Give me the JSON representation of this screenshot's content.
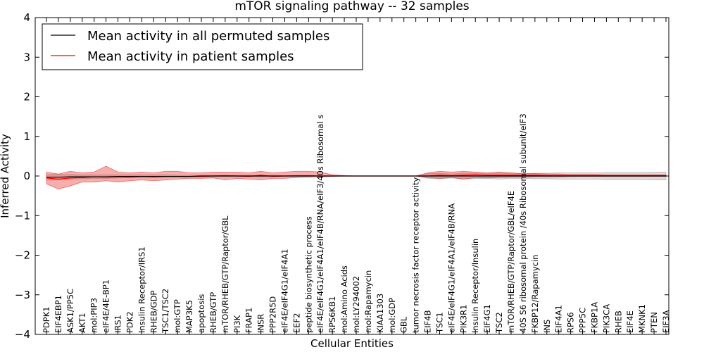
{
  "chart_data": {
    "type": "line",
    "title": "mTOR signaling pathway -- 32 samples",
    "xlabel": "Cellular Entities",
    "ylabel": "Inferred Activity",
    "ylim": [
      -4,
      4
    ],
    "yticks": [
      4,
      3,
      2,
      1,
      0,
      -1,
      -2,
      -3,
      -4
    ],
    "ytick_labels": [
      "4",
      "3",
      "2",
      "1",
      "0",
      "−1",
      "−2",
      "−3",
      "−4"
    ],
    "grid": false,
    "legend_position": "top-left",
    "categories": [
      "PDPK1",
      "EIF4EBP1",
      "ASK1/PP5C",
      "AKT1",
      "mol:PIP3",
      "eIF4E/4E-BP1",
      "IRS1",
      "PDK2",
      "Insulin Receptor/IRS1",
      "RHEB/GDP",
      "TSC1/TSC2",
      "mol:GTP",
      "MAP3K5",
      "apoptosis",
      "RHEB/GTP",
      "mTOR/RHEB/GTP/Raptor/GBL",
      "PI3K",
      "FRAP1",
      "INSR",
      "PPP2R5D",
      "eIF4E/eIF4G1/eIF4A1",
      "EEF2",
      "peptide biosynthetic process",
      "eIF4E/eIF4G1/eIF4A1/eIF4B/RNA/eIF3/40s Ribosomal s",
      "RPS6KB1",
      "mol:Amino Acids",
      "mol:LY294002",
      "mol:Rapamycin",
      "KIAA1303",
      "mol:GDP",
      "GBL",
      "tumor necrosis factor receptor activity",
      "EIF4B",
      "TSC1",
      "eIF4E/eIF4G1/eIF4A1/eIF4B/RNA",
      "PIK3R1",
      "Insulin Receptor/Insulin",
      "EIF4G1",
      "TSC2",
      "mTOR/RHEB/GTP/Raptor/GBL/eIF4E",
      "40S S6 ribosomal protein /40s Ribosomal subunit/eIF3",
      "FKBP12/Rapamycin",
      "INS",
      "EIF4A1",
      "RPS6",
      "PPP5C",
      "FKBP1A",
      "PIK3CA",
      "RHEB",
      "EIF4E",
      "MKNK1",
      "PTEN",
      "EIF3A"
    ],
    "series": [
      {
        "name": "Mean activity in all permuted samples",
        "color": "#000000",
        "values": [
          -0.03,
          -0.03,
          -0.02,
          -0.02,
          -0.02,
          -0.02,
          -0.01,
          -0.01,
          -0.01,
          -0.01,
          -0.01,
          -0.01,
          -0.01,
          0.0,
          0.0,
          0.0,
          0.0,
          0.0,
          0.0,
          0.0,
          0.0,
          0.0,
          0.0,
          0.0,
          0.0,
          0.0,
          0.0,
          0.0,
          0.0,
          0.0,
          0.0,
          0.0,
          0.0,
          0.0,
          0.0,
          0.0,
          0.0,
          0.0,
          0.0,
          0.0,
          0.0,
          0.0,
          0.0,
          0.0,
          0.0,
          0.0,
          0.0,
          0.0,
          0.0,
          0.0,
          0.0,
          0.0,
          0.0
        ],
        "band_low": [
          -0.1,
          -0.1,
          -0.08,
          -0.07,
          -0.06,
          -0.06,
          -0.05,
          -0.04,
          -0.04,
          -0.04,
          -0.03,
          -0.03,
          -0.03,
          -0.03,
          -0.02,
          -0.02,
          -0.02,
          -0.02,
          -0.02,
          -0.02,
          -0.01,
          -0.01,
          -0.01,
          0.0,
          0.0,
          0.0,
          0.0,
          0.0,
          0.0,
          0.0,
          0.0,
          0.0,
          -0.06,
          -0.07,
          -0.05,
          -0.07,
          -0.07,
          -0.06,
          -0.08,
          -0.06,
          -0.06,
          -0.07,
          -0.07,
          -0.08,
          -0.08,
          -0.08,
          -0.08,
          -0.09,
          -0.09,
          -0.09,
          -0.09,
          -0.1,
          -0.1
        ],
        "band_high": [
          0.04,
          0.04,
          0.04,
          0.03,
          0.03,
          0.03,
          0.03,
          0.03,
          0.03,
          0.03,
          0.03,
          0.02,
          0.02,
          0.02,
          0.02,
          0.02,
          0.02,
          0.02,
          0.02,
          0.02,
          0.01,
          0.01,
          0.01,
          0.0,
          0.0,
          0.0,
          0.0,
          0.0,
          0.0,
          0.0,
          0.0,
          0.0,
          0.06,
          0.07,
          0.05,
          0.07,
          0.07,
          0.06,
          0.08,
          0.06,
          0.06,
          0.07,
          0.07,
          0.08,
          0.08,
          0.08,
          0.08,
          0.09,
          0.09,
          0.09,
          0.09,
          0.1,
          0.1
        ]
      },
      {
        "name": "Mean activity in patient samples",
        "color": "#ff0000",
        "values": [
          -0.05,
          -0.08,
          -0.05,
          -0.04,
          -0.02,
          -0.03,
          -0.02,
          -0.03,
          -0.01,
          -0.02,
          -0.01,
          -0.01,
          -0.01,
          -0.01,
          0.0,
          0.01,
          0.0,
          -0.01,
          0.02,
          -0.01,
          0.0,
          0.01,
          0.01,
          0.0,
          0.0,
          0.0,
          0.0,
          0.0,
          0.0,
          0.0,
          0.0,
          0.0,
          0.0,
          0.02,
          0.01,
          0.02,
          0.03,
          0.02,
          0.02,
          0.02,
          0.02,
          0.02,
          0.01,
          0.01,
          0.01,
          0.01,
          0.01,
          0.01,
          0.01,
          0.01,
          0.01,
          0.01,
          0.01
        ],
        "band_low": [
          -0.2,
          -0.33,
          -0.25,
          -0.15,
          -0.15,
          -0.12,
          -0.15,
          -0.12,
          -0.1,
          -0.12,
          -0.1,
          -0.08,
          -0.06,
          -0.06,
          -0.05,
          -0.1,
          -0.06,
          -0.08,
          -0.1,
          -0.06,
          -0.06,
          -0.04,
          -0.03,
          -0.02,
          -0.01,
          0.0,
          0.0,
          0.0,
          0.0,
          0.0,
          0.0,
          0.0,
          -0.04,
          -0.06,
          -0.04,
          -0.08,
          -0.04,
          -0.05,
          -0.04,
          -0.03,
          -0.03,
          -0.02,
          -0.02,
          -0.02,
          -0.01,
          -0.01,
          -0.01,
          -0.01,
          -0.01,
          -0.01,
          -0.01,
          -0.01,
          -0.01
        ],
        "band_high": [
          0.1,
          0.05,
          0.12,
          0.08,
          0.1,
          0.25,
          0.1,
          0.08,
          0.1,
          0.08,
          0.12,
          0.12,
          0.08,
          0.08,
          0.1,
          0.1,
          0.1,
          0.08,
          0.12,
          0.08,
          0.1,
          0.12,
          0.12,
          0.1,
          0.03,
          0.01,
          0.0,
          0.0,
          0.0,
          0.0,
          0.0,
          0.0,
          0.08,
          0.12,
          0.1,
          0.12,
          0.1,
          0.08,
          0.1,
          0.08,
          0.06,
          0.06,
          0.05,
          0.05,
          0.04,
          0.04,
          0.04,
          0.03,
          0.03,
          0.03,
          0.03,
          0.03,
          0.03
        ]
      }
    ]
  }
}
